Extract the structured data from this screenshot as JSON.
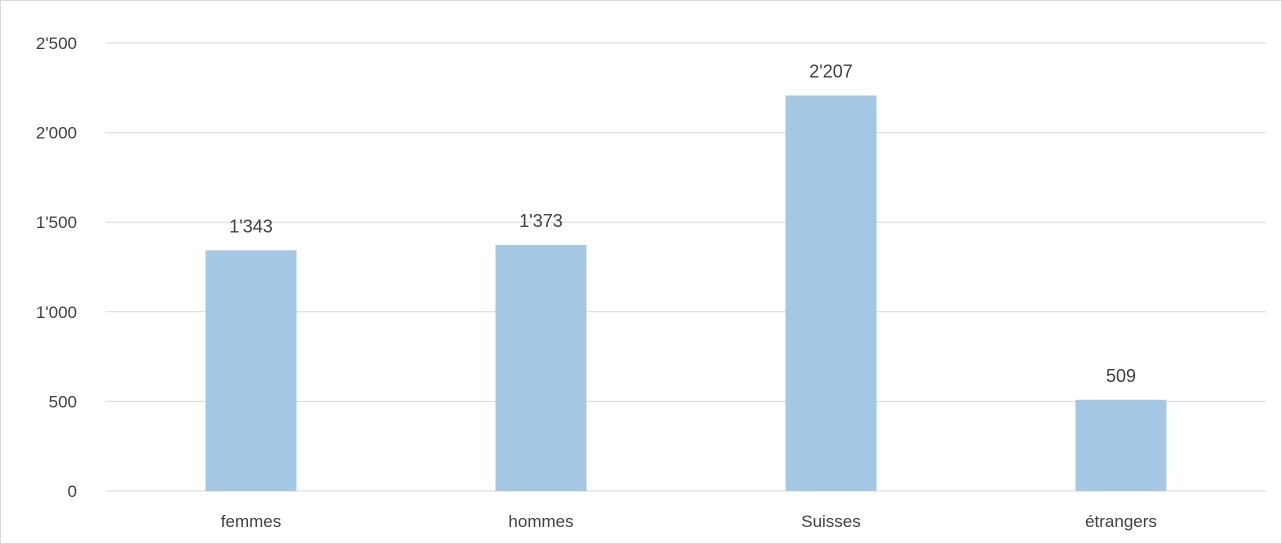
{
  "chart_data": {
    "type": "bar",
    "title": "",
    "xlabel": "",
    "ylabel": "",
    "categories": [
      "femmes",
      "hommes",
      "Suisses",
      "étrangers"
    ],
    "values": [
      1343,
      1373,
      2207,
      509
    ],
    "data_labels": [
      "1'343",
      "1'373",
      "2'207",
      "509"
    ],
    "ylim": [
      0,
      2500
    ],
    "yticks": [
      0,
      500,
      1000,
      1500,
      2000,
      2500
    ],
    "ytick_labels": [
      "0",
      "500",
      "1'000",
      "1'500",
      "2'000",
      "2'500"
    ],
    "grid": true,
    "legend": "none",
    "bar_color": "#a4c8e4",
    "grid_color": "#d9d9d9",
    "text_color": "#404040"
  }
}
